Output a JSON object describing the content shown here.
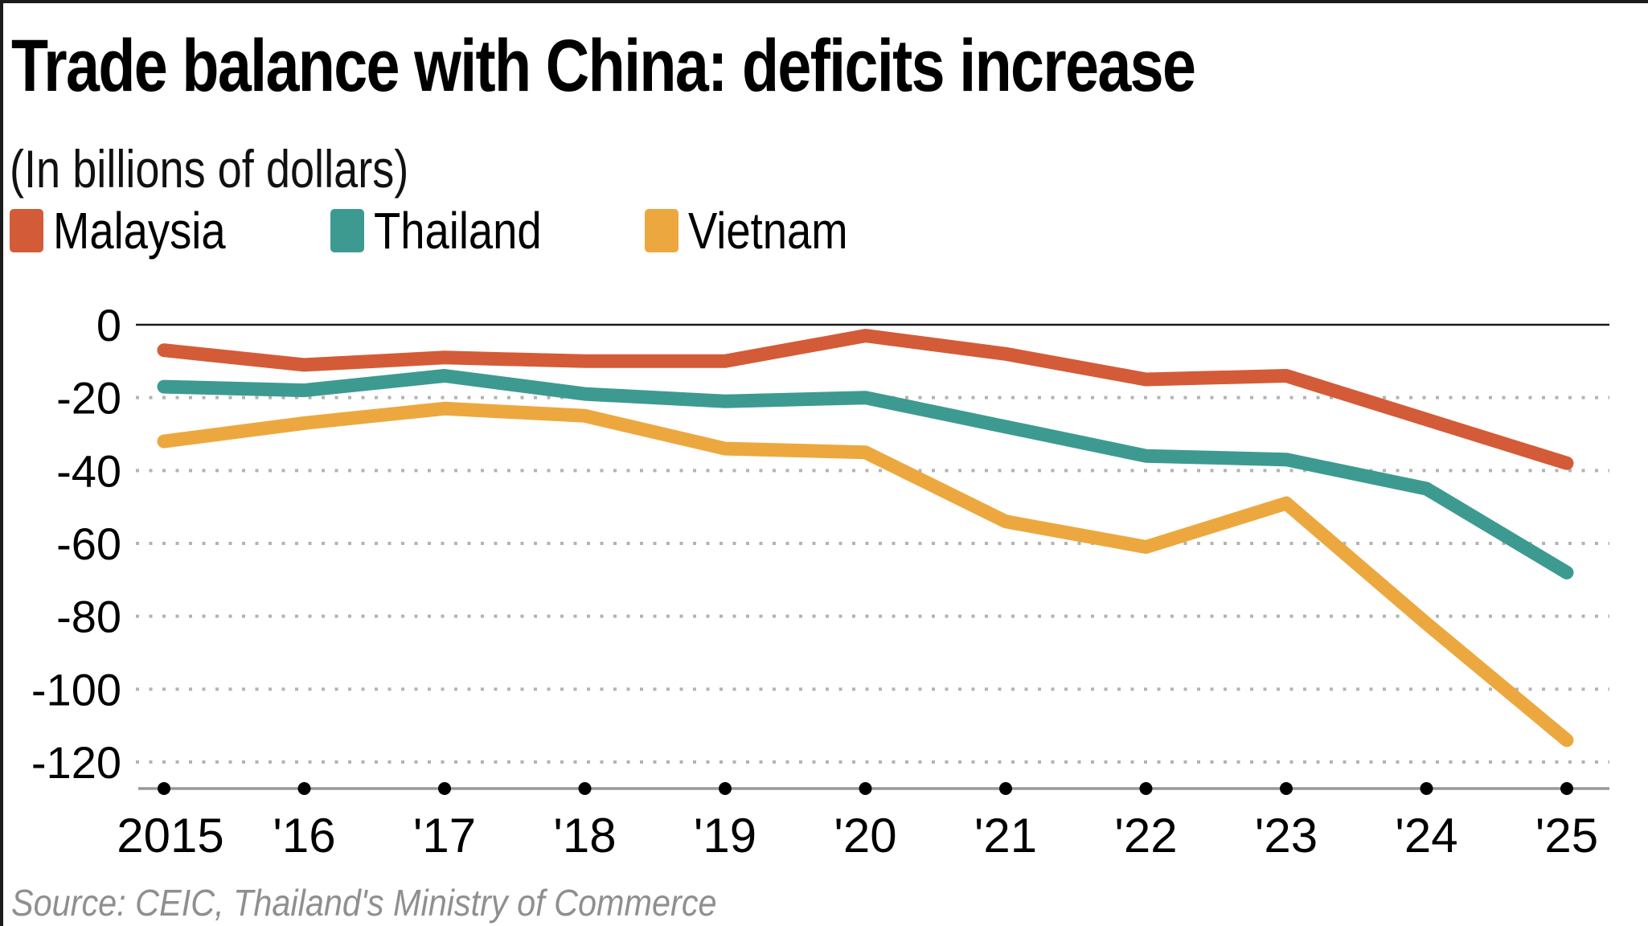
{
  "header": {
    "title": "Trade balance with China: deficits increase",
    "subtitle": "(In billions of dollars)"
  },
  "source": "Source: CEIC, Thailand's Ministry of Commerce",
  "colors": {
    "malaysia": "#d45b38",
    "thailand": "#3d9a91",
    "vietnam": "#eca83f",
    "zero_line": "#1a1a1a",
    "grid_dots": "#b3b3b3",
    "axis_line": "#999999",
    "axis_tick_dot": "#000000",
    "tick_text": "#000000",
    "source_text": "#8f8f8f"
  },
  "chart_data": {
    "type": "line",
    "x": [
      "2015",
      "'16",
      "'17",
      "'18",
      "'19",
      "'20",
      "'21",
      "'22",
      "'23",
      "'24",
      "'25"
    ],
    "series": [
      {
        "name": "Malaysia",
        "color": "#d45b38",
        "values": [
          -7,
          -11,
          -9,
          -10,
          -10,
          -3,
          -8,
          -15,
          -14,
          -26,
          -38
        ]
      },
      {
        "name": "Thailand",
        "color": "#3d9a91",
        "values": [
          -17,
          -18,
          -14,
          -19,
          -21,
          -20,
          -28,
          -36,
          -37,
          -45,
          -68
        ]
      },
      {
        "name": "Vietnam",
        "color": "#eca83f",
        "values": [
          -32,
          -27,
          -23,
          -25,
          -34,
          -35,
          -54,
          -61,
          -49,
          -82,
          -114
        ]
      }
    ],
    "title": "Trade balance with China: deficits increase",
    "subtitle": "(In billions of dollars)",
    "xlabel": "",
    "ylabel": "",
    "unit": "billions of dollars",
    "yticks": [
      0,
      -20,
      -40,
      -60,
      -80,
      -100,
      -120
    ],
    "ylim": [
      -130,
      0
    ],
    "grid": "horizontal dotted, solid zero line",
    "legend_position": "top-left"
  }
}
